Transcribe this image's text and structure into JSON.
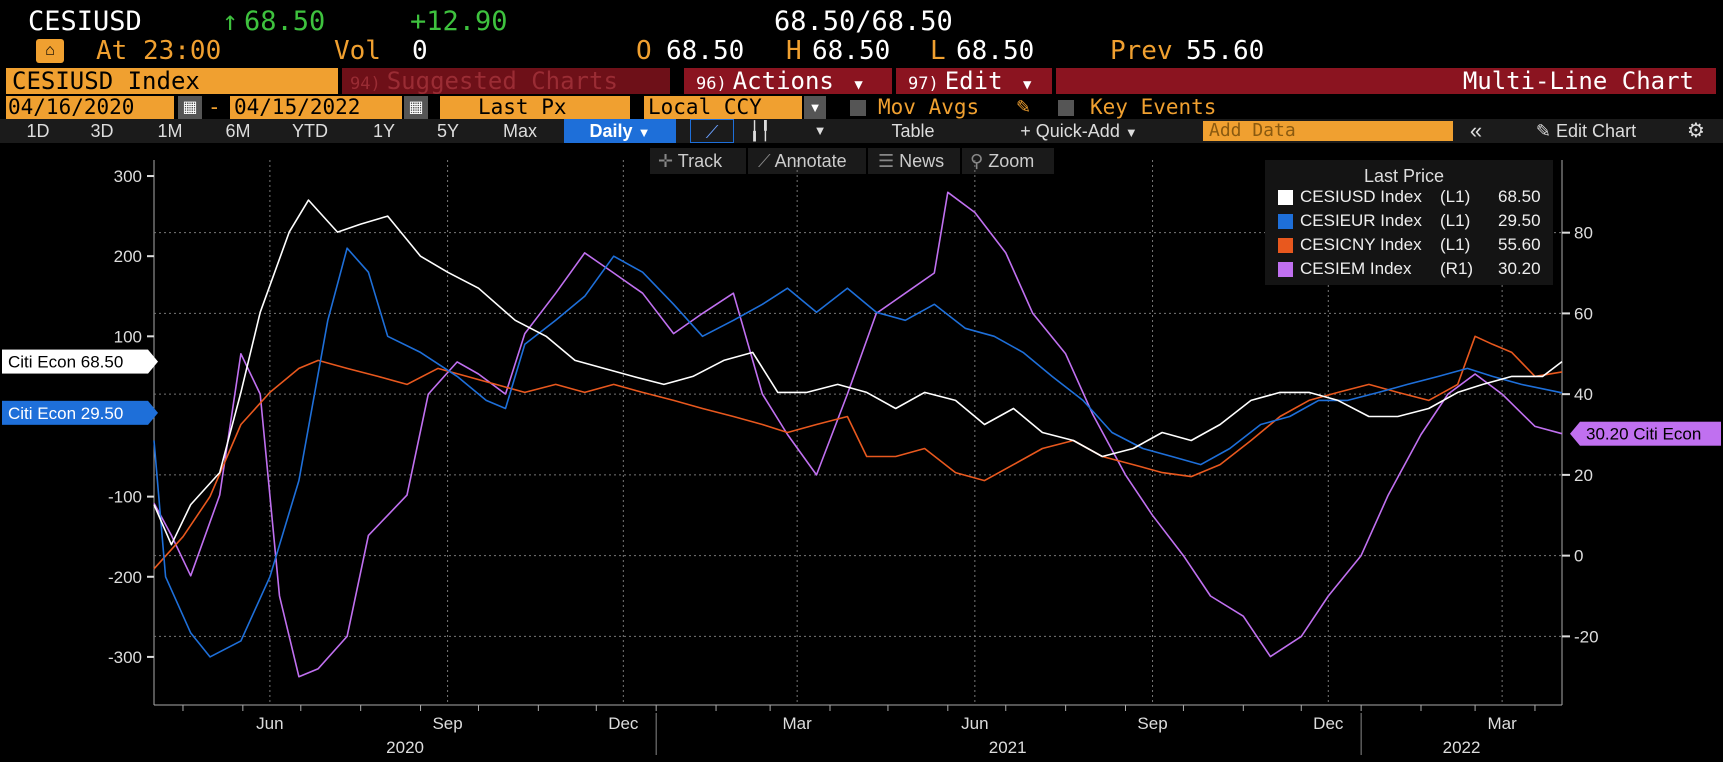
{
  "quote": {
    "ticker": "CESIUSD",
    "arrow": "↑",
    "last": "68.50",
    "change": "+12.90",
    "bid_ask": "68.50/68.50",
    "time_label": "At 23:00",
    "vol_label": "Vol",
    "vol_value": "0",
    "open_label": "O",
    "open_value": "68.50",
    "high_label": "H",
    "high_value": "68.50",
    "low_label": "L",
    "low_value": "68.50",
    "prev_label": "Prev",
    "prev_value": "55.60"
  },
  "menu": {
    "security": "CESIUSD Index",
    "suggested_num": "94)",
    "suggested": "Suggested Charts",
    "actions_num": "96)",
    "actions": "Actions",
    "edit_num": "97)",
    "edit": "Edit",
    "view_title": "Multi-Line Chart"
  },
  "params": {
    "start_date": "04/16/2020",
    "dash": "-",
    "end_date": "04/15/2022",
    "field": "Last Px",
    "currency": "Local CCY",
    "mov_avgs": "Mov Avgs",
    "key_events": "Key Events"
  },
  "toolbar": {
    "periods": [
      "1D",
      "3D",
      "1M",
      "6M",
      "YTD",
      "1Y",
      "5Y",
      "Max"
    ],
    "frequency": "Daily",
    "table": "Table",
    "quick_add": "+ Quick-Add",
    "add_data_placeholder": "Add Data",
    "collapse": "«",
    "edit_chart": "Edit Chart"
  },
  "chart_tools": {
    "track": "Track",
    "annotate": "Annotate",
    "news": "News",
    "zoom": "Zoom"
  },
  "icons": [
    "speedometer-icon",
    "calendar-icon",
    "dropdown-arrow-icon",
    "pencil-icon",
    "line-chart-icon",
    "bar-chart-icon",
    "crosshair-icon",
    "news-icon",
    "zoom-icon",
    "gear-icon"
  ],
  "colors": {
    "accent_orange": "#f0a030",
    "header_red": "#8b1420",
    "selected_blue": "#1e6fd9",
    "up_green": "#3ec23e"
  },
  "chart_data": {
    "type": "line",
    "legend_title": "Last Price",
    "legend_placement": "top-right",
    "grid": true,
    "left_axis": {
      "ticks": [
        300,
        200,
        100,
        0,
        -100,
        -200,
        -300
      ],
      "range": [
        -360,
        320
      ]
    },
    "right_axis": {
      "ticks": [
        80,
        60,
        40,
        20,
        0,
        -20
      ],
      "range": [
        -37,
        98
      ]
    },
    "x_range": [
      "2020-04-16",
      "2022-04-15"
    ],
    "month_ticks": [
      "Jun",
      "Sep",
      "Dec",
      "Mar",
      "Jun",
      "Sep",
      "Dec",
      "Mar"
    ],
    "year_labels": [
      "2020",
      "2021",
      "2022"
    ],
    "series": [
      {
        "name": "CESIUSD Index",
        "axis_label": "(L1)",
        "last": "68.50",
        "color": "#ffffff",
        "axis": "left",
        "tag": "Citi Econ 68.50",
        "points": [
          [
            "2020-04-16",
            -110
          ],
          [
            "2020-04-25",
            -160
          ],
          [
            "2020-05-05",
            -110
          ],
          [
            "2020-05-20",
            -70
          ],
          [
            "2020-05-31",
            30
          ],
          [
            "2020-06-10",
            130
          ],
          [
            "2020-06-25",
            230
          ],
          [
            "2020-07-05",
            270
          ],
          [
            "2020-07-20",
            230
          ],
          [
            "2020-08-01",
            240
          ],
          [
            "2020-08-15",
            250
          ],
          [
            "2020-09-01",
            200
          ],
          [
            "2020-09-15",
            180
          ],
          [
            "2020-10-01",
            160
          ],
          [
            "2020-10-20",
            120
          ],
          [
            "2020-11-05",
            100
          ],
          [
            "2020-11-20",
            70
          ],
          [
            "2020-12-05",
            60
          ],
          [
            "2020-12-20",
            50
          ],
          [
            "2021-01-05",
            40
          ],
          [
            "2021-01-20",
            50
          ],
          [
            "2021-02-05",
            70
          ],
          [
            "2021-02-20",
            80
          ],
          [
            "2021-03-05",
            30
          ],
          [
            "2021-03-20",
            30
          ],
          [
            "2021-04-05",
            40
          ],
          [
            "2021-04-20",
            30
          ],
          [
            "2021-05-05",
            10
          ],
          [
            "2021-05-20",
            30
          ],
          [
            "2021-06-05",
            20
          ],
          [
            "2021-06-20",
            -10
          ],
          [
            "2021-07-05",
            10
          ],
          [
            "2021-07-20",
            -20
          ],
          [
            "2021-08-05",
            -30
          ],
          [
            "2021-08-20",
            -50
          ],
          [
            "2021-09-05",
            -40
          ],
          [
            "2021-09-20",
            -20
          ],
          [
            "2021-10-05",
            -30
          ],
          [
            "2021-10-20",
            -10
          ],
          [
            "2021-11-05",
            20
          ],
          [
            "2021-11-20",
            30
          ],
          [
            "2021-12-05",
            30
          ],
          [
            "2021-12-20",
            20
          ],
          [
            "2022-01-05",
            0
          ],
          [
            "2022-01-20",
            0
          ],
          [
            "2022-02-05",
            10
          ],
          [
            "2022-02-20",
            30
          ],
          [
            "2022-03-05",
            40
          ],
          [
            "2022-03-20",
            50
          ],
          [
            "2022-04-05",
            50
          ],
          [
            "2022-04-15",
            68.5
          ]
        ]
      },
      {
        "name": "CESIEUR Index",
        "axis_label": "(L1)",
        "last": "29.50",
        "color": "#1e6fd9",
        "axis": "left",
        "tag": "Citi Econ 29.50",
        "points": [
          [
            "2020-04-16",
            -30
          ],
          [
            "2020-04-22",
            -200
          ],
          [
            "2020-05-05",
            -270
          ],
          [
            "2020-05-15",
            -300
          ],
          [
            "2020-05-31",
            -280
          ],
          [
            "2020-06-15",
            -200
          ],
          [
            "2020-06-30",
            -80
          ],
          [
            "2020-07-15",
            120
          ],
          [
            "2020-07-25",
            210
          ],
          [
            "2020-08-05",
            180
          ],
          [
            "2020-08-15",
            100
          ],
          [
            "2020-09-01",
            80
          ],
          [
            "2020-09-20",
            50
          ],
          [
            "2020-10-05",
            20
          ],
          [
            "2020-10-15",
            10
          ],
          [
            "2020-10-25",
            90
          ],
          [
            "2020-11-10",
            120
          ],
          [
            "2020-11-25",
            150
          ],
          [
            "2020-12-10",
            200
          ],
          [
            "2020-12-25",
            180
          ],
          [
            "2021-01-10",
            140
          ],
          [
            "2021-01-25",
            100
          ],
          [
            "2021-02-10",
            120
          ],
          [
            "2021-02-25",
            140
          ],
          [
            "2021-03-10",
            160
          ],
          [
            "2021-03-25",
            130
          ],
          [
            "2021-04-10",
            160
          ],
          [
            "2021-04-25",
            130
          ],
          [
            "2021-05-10",
            120
          ],
          [
            "2021-05-25",
            140
          ],
          [
            "2021-06-10",
            110
          ],
          [
            "2021-06-25",
            100
          ],
          [
            "2021-07-10",
            80
          ],
          [
            "2021-07-25",
            50
          ],
          [
            "2021-08-10",
            20
          ],
          [
            "2021-08-25",
            -20
          ],
          [
            "2021-09-10",
            -40
          ],
          [
            "2021-09-25",
            -50
          ],
          [
            "2021-10-10",
            -60
          ],
          [
            "2021-10-25",
            -40
          ],
          [
            "2021-11-10",
            -10
          ],
          [
            "2021-11-25",
            0
          ],
          [
            "2021-12-10",
            20
          ],
          [
            "2021-12-25",
            20
          ],
          [
            "2022-01-10",
            30
          ],
          [
            "2022-01-25",
            40
          ],
          [
            "2022-02-10",
            50
          ],
          [
            "2022-02-25",
            60
          ],
          [
            "2022-03-10",
            50
          ],
          [
            "2022-03-25",
            40
          ],
          [
            "2022-04-15",
            29.5
          ]
        ]
      },
      {
        "name": "CESICNY Index",
        "axis_label": "(L1)",
        "last": "55.60",
        "color": "#e8581e",
        "axis": "left",
        "tag": "",
        "points": [
          [
            "2020-04-16",
            -190
          ],
          [
            "2020-05-01",
            -150
          ],
          [
            "2020-05-15",
            -100
          ],
          [
            "2020-05-31",
            -10
          ],
          [
            "2020-06-15",
            30
          ],
          [
            "2020-06-30",
            60
          ],
          [
            "2020-07-10",
            70
          ],
          [
            "2020-07-25",
            60
          ],
          [
            "2020-08-10",
            50
          ],
          [
            "2020-08-25",
            40
          ],
          [
            "2020-09-10",
            60
          ],
          [
            "2020-09-25",
            50
          ],
          [
            "2020-10-10",
            40
          ],
          [
            "2020-10-25",
            30
          ],
          [
            "2020-11-10",
            40
          ],
          [
            "2020-11-25",
            30
          ],
          [
            "2020-12-10",
            40
          ],
          [
            "2020-12-25",
            30
          ],
          [
            "2021-01-10",
            20
          ],
          [
            "2021-01-25",
            10
          ],
          [
            "2021-02-10",
            0
          ],
          [
            "2021-02-25",
            -10
          ],
          [
            "2021-03-10",
            -20
          ],
          [
            "2021-03-25",
            -10
          ],
          [
            "2021-04-10",
            0
          ],
          [
            "2021-04-20",
            -50
          ],
          [
            "2021-05-05",
            -50
          ],
          [
            "2021-05-20",
            -40
          ],
          [
            "2021-06-05",
            -70
          ],
          [
            "2021-06-20",
            -80
          ],
          [
            "2021-07-05",
            -60
          ],
          [
            "2021-07-20",
            -40
          ],
          [
            "2021-08-05",
            -30
          ],
          [
            "2021-08-20",
            -50
          ],
          [
            "2021-09-05",
            -60
          ],
          [
            "2021-09-20",
            -70
          ],
          [
            "2021-10-05",
            -75
          ],
          [
            "2021-10-20",
            -60
          ],
          [
            "2021-11-05",
            -30
          ],
          [
            "2021-11-20",
            0
          ],
          [
            "2021-12-05",
            20
          ],
          [
            "2021-12-20",
            30
          ],
          [
            "2022-01-05",
            40
          ],
          [
            "2022-01-20",
            30
          ],
          [
            "2022-02-05",
            20
          ],
          [
            "2022-02-20",
            40
          ],
          [
            "2022-03-01",
            100
          ],
          [
            "2022-03-10",
            90
          ],
          [
            "2022-03-20",
            80
          ],
          [
            "2022-04-01",
            50
          ],
          [
            "2022-04-15",
            55.6
          ]
        ]
      },
      {
        "name": "CESIEM Index",
        "axis_label": "(R1)",
        "last": "30.20",
        "color": "#c070f0",
        "axis": "right",
        "tag": "30.20 Citi Econ",
        "points": [
          [
            "2020-04-16",
            13
          ],
          [
            "2020-04-25",
            5
          ],
          [
            "2020-05-05",
            -5
          ],
          [
            "2020-05-20",
            15
          ],
          [
            "2020-05-31",
            50
          ],
          [
            "2020-06-10",
            40
          ],
          [
            "2020-06-20",
            -10
          ],
          [
            "2020-06-30",
            -30
          ],
          [
            "2020-07-10",
            -28
          ],
          [
            "2020-07-25",
            -20
          ],
          [
            "2020-08-05",
            5
          ],
          [
            "2020-08-15",
            10
          ],
          [
            "2020-08-25",
            15
          ],
          [
            "2020-09-05",
            40
          ],
          [
            "2020-09-20",
            48
          ],
          [
            "2020-10-01",
            45
          ],
          [
            "2020-10-15",
            40
          ],
          [
            "2020-10-25",
            55
          ],
          [
            "2020-11-10",
            65
          ],
          [
            "2020-11-25",
            75
          ],
          [
            "2020-12-10",
            70
          ],
          [
            "2020-12-25",
            65
          ],
          [
            "2021-01-10",
            55
          ],
          [
            "2021-01-25",
            60
          ],
          [
            "2021-02-10",
            65
          ],
          [
            "2021-02-25",
            40
          ],
          [
            "2021-03-10",
            30
          ],
          [
            "2021-03-25",
            20
          ],
          [
            "2021-04-10",
            40
          ],
          [
            "2021-04-25",
            60
          ],
          [
            "2021-05-10",
            65
          ],
          [
            "2021-05-25",
            70
          ],
          [
            "2021-06-01",
            90
          ],
          [
            "2021-06-15",
            85
          ],
          [
            "2021-07-01",
            75
          ],
          [
            "2021-07-15",
            60
          ],
          [
            "2021-08-01",
            50
          ],
          [
            "2021-08-15",
            35
          ],
          [
            "2021-09-01",
            20
          ],
          [
            "2021-09-15",
            10
          ],
          [
            "2021-10-01",
            0
          ],
          [
            "2021-10-15",
            -10
          ],
          [
            "2021-11-01",
            -15
          ],
          [
            "2021-11-15",
            -25
          ],
          [
            "2021-12-01",
            -20
          ],
          [
            "2021-12-15",
            -10
          ],
          [
            "2022-01-01",
            0
          ],
          [
            "2022-01-15",
            15
          ],
          [
            "2022-02-01",
            30
          ],
          [
            "2022-02-15",
            40
          ],
          [
            "2022-03-01",
            45
          ],
          [
            "2022-03-15",
            40
          ],
          [
            "2022-04-01",
            32
          ],
          [
            "2022-04-15",
            30.2
          ]
        ]
      }
    ]
  }
}
